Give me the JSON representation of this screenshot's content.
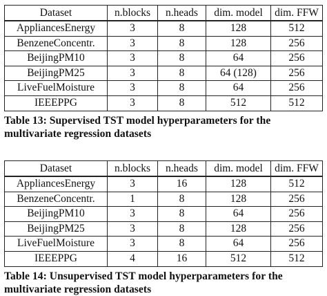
{
  "tables": [
    {
      "headers": [
        "Dataset",
        "n.blocks",
        "n.heads",
        "dim. model",
        "dim. FFW"
      ],
      "rows": [
        [
          "AppliancesEnergy",
          "3",
          "8",
          "128",
          "512"
        ],
        [
          "BenzeneConcentr.",
          "3",
          "8",
          "128",
          "256"
        ],
        [
          "BeijingPM10",
          "3",
          "8",
          "64",
          "256"
        ],
        [
          "BeijingPM25",
          "3",
          "8",
          "64 (128)",
          "256"
        ],
        [
          "LiveFuelMoisture",
          "3",
          "8",
          "64",
          "256"
        ],
        [
          "IEEEPPG",
          "3",
          "8",
          "512",
          "512"
        ]
      ],
      "caption_line1": "Table 13: Supervised TST model hyperparameters for the",
      "caption_line2": "multivariate regression datasets"
    },
    {
      "headers": [
        "Dataset",
        "n.blocks",
        "n.heads",
        "dim. model",
        "dim. FFW"
      ],
      "rows": [
        [
          "AppliancesEnergy",
          "3",
          "16",
          "128",
          "512"
        ],
        [
          "BenzeneConcentr.",
          "1",
          "8",
          "128",
          "256"
        ],
        [
          "BeijingPM10",
          "3",
          "8",
          "64",
          "256"
        ],
        [
          "BeijingPM25",
          "3",
          "8",
          "128",
          "256"
        ],
        [
          "LiveFuelMoisture",
          "3",
          "8",
          "64",
          "256"
        ],
        [
          "IEEEPPG",
          "4",
          "16",
          "512",
          "512"
        ]
      ],
      "caption_line1": "Table 14: Unsupervised TST model hyperparameters for the",
      "caption_line2": "multivariate regression datasets"
    }
  ]
}
